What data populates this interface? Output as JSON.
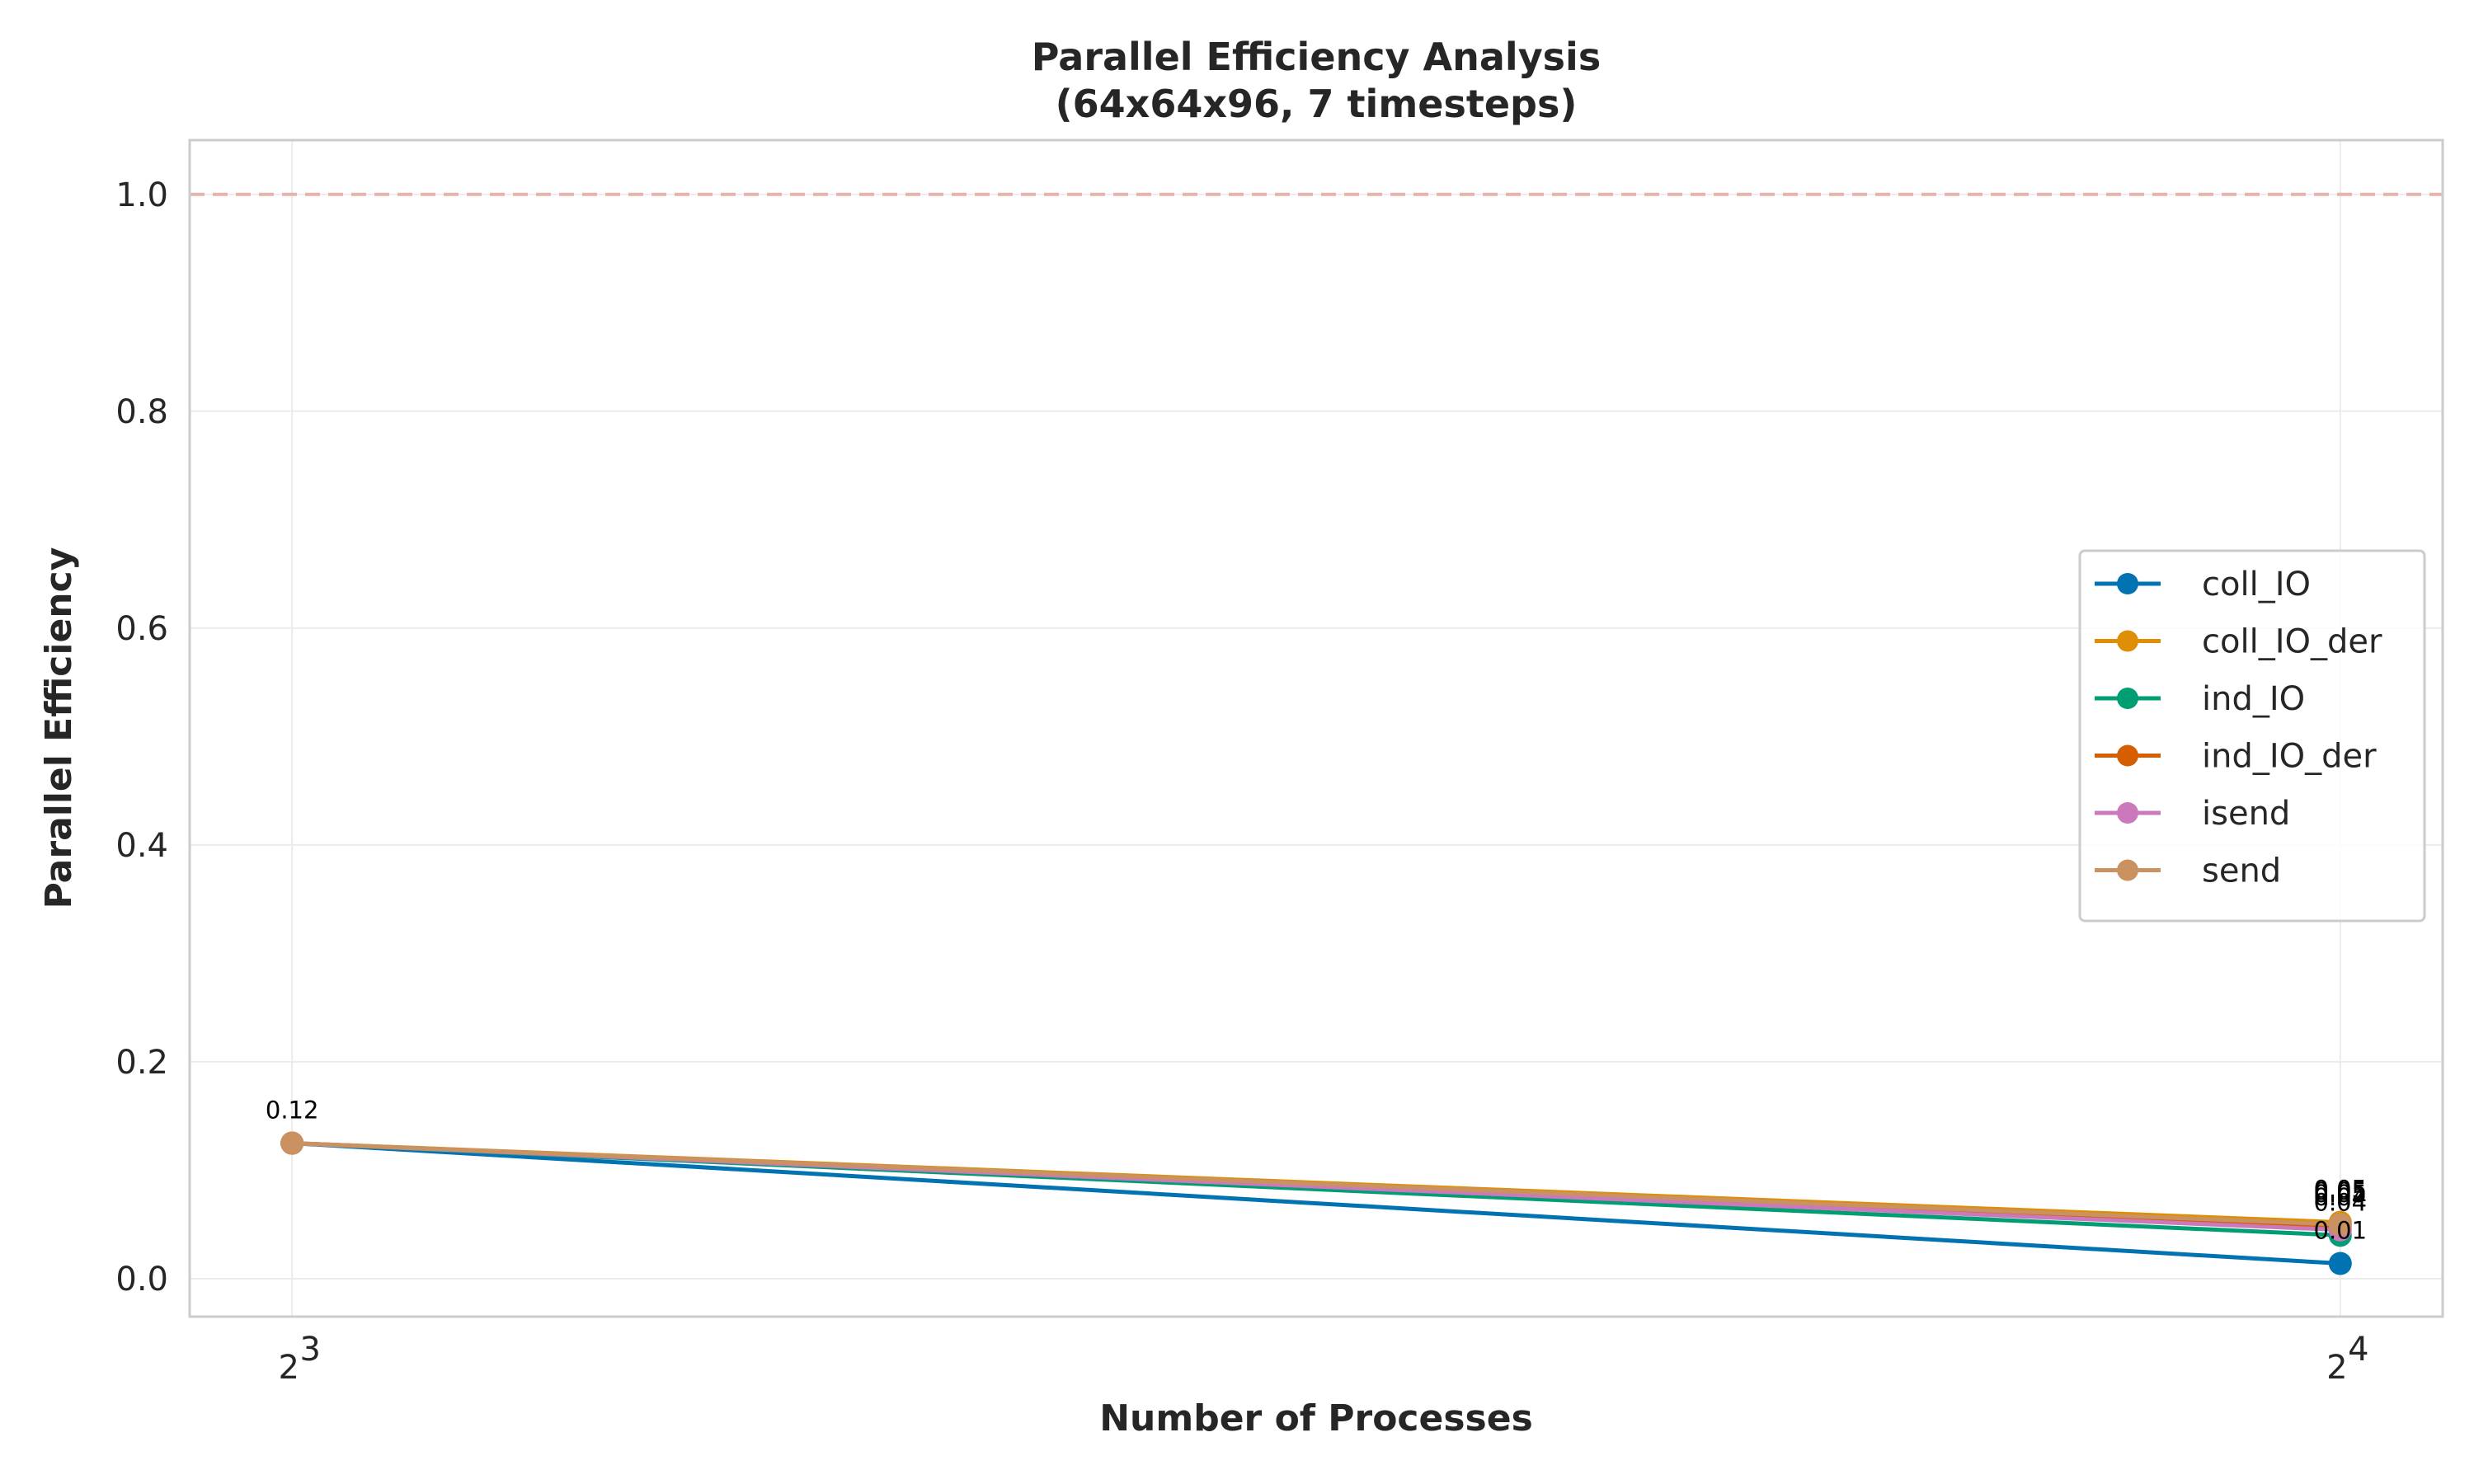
{
  "chart_data": {
    "type": "line",
    "title": "Parallel Efficiency Analysis",
    "subtitle": "(64x64x96, 7 timesteps)",
    "xlabel": "Number of Processes",
    "ylabel": "Parallel Efficiency",
    "x": [
      8,
      16
    ],
    "x_scale": "log2",
    "x_tick_labels": [
      {
        "base": "2",
        "exp": "3"
      },
      {
        "base": "2",
        "exp": "4"
      }
    ],
    "y_ticks": [
      "0.0",
      "0.2",
      "0.4",
      "0.6",
      "0.8",
      "1.0"
    ],
    "ylim": [
      -0.035,
      1.05
    ],
    "reference_line": {
      "y": 1.0,
      "style": "dashed",
      "color": "#e6b4ae"
    },
    "grid": true,
    "legend_position": "center-right",
    "series": [
      {
        "name": "coll_IO",
        "color": "#0173b2",
        "values": [
          0.125,
          0.014
        ]
      },
      {
        "name": "coll_IO_der",
        "color": "#de8f05",
        "values": [
          0.125,
          0.052
        ]
      },
      {
        "name": "ind_IO",
        "color": "#029e73",
        "values": [
          0.125,
          0.04
        ]
      },
      {
        "name": "ind_IO_der",
        "color": "#d55e00",
        "values": [
          0.125,
          0.048
        ]
      },
      {
        "name": "isend",
        "color": "#cc78bc",
        "values": [
          0.125,
          0.045
        ]
      },
      {
        "name": "send",
        "color": "#ca9161",
        "values": [
          0.125,
          0.05
        ]
      }
    ],
    "data_labels": [
      {
        "x": 8,
        "y": 0.125,
        "text": "0.12"
      },
      {
        "x": 16,
        "y": 0.052,
        "text": "0.05"
      },
      {
        "x": 16,
        "y": 0.05,
        "text": "0.05"
      },
      {
        "x": 16,
        "y": 0.048,
        "text": "0.05"
      },
      {
        "x": 16,
        "y": 0.045,
        "text": "0.04"
      },
      {
        "x": 16,
        "y": 0.04,
        "text": "0.04"
      },
      {
        "x": 16,
        "y": 0.014,
        "text": "0.01"
      }
    ]
  }
}
